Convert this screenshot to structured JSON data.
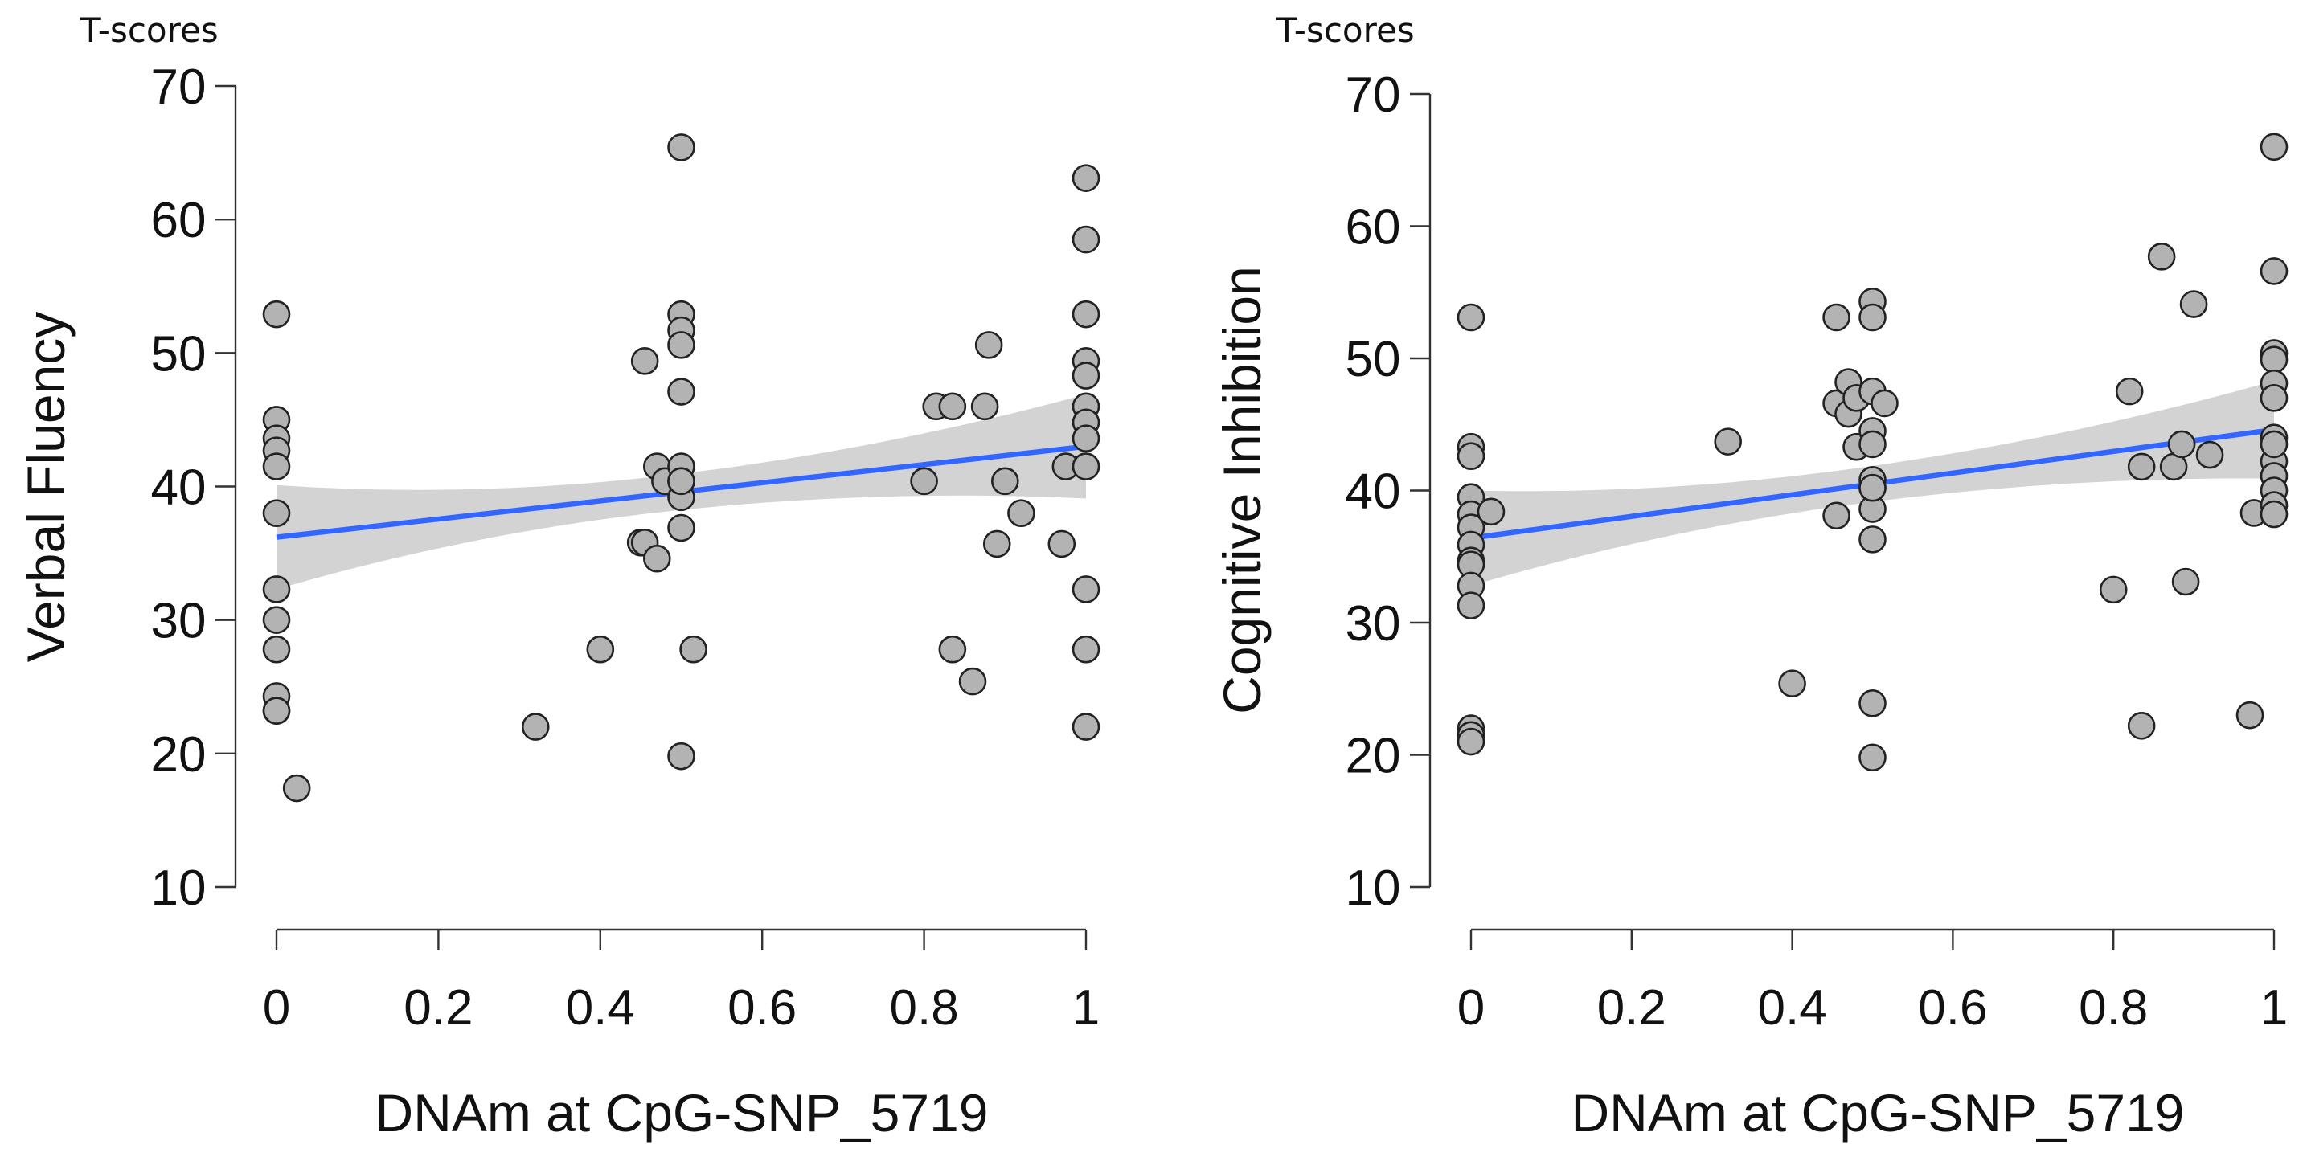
{
  "chart_data": [
    {
      "type": "scatter",
      "unit_label": "T-scores",
      "xlabel": "DNAm at CpG-SNP_5719",
      "ylabel": "Verbal Fluency",
      "xlim": [
        0,
        1
      ],
      "ylim": [
        10,
        70
      ],
      "xticks": [
        "0",
        "0.2",
        "0.4",
        "0.6",
        "0.8",
        "1"
      ],
      "yticks": [
        "10",
        "20",
        "30",
        "40",
        "50",
        "60",
        "70"
      ],
      "grid": false,
      "point_color": "#b3b3b3",
      "point_edge_color": "#222222",
      "fit_line_color": "#3366ff",
      "ci_band_color": "#d3d3d3",
      "fit": {
        "x": [
          0,
          1
        ],
        "y": [
          36.2,
          43.0
        ],
        "ci_low": [
          32.3,
          39.1
        ],
        "ci_high": [
          40.1,
          46.9
        ]
      },
      "x": [
        0,
        0,
        0,
        0,
        0,
        0,
        0,
        0,
        0,
        0,
        0,
        0,
        0.025,
        0.32,
        0.4,
        0.45,
        0.455,
        0.455,
        0.47,
        0.47,
        0.48,
        0.5,
        0.5,
        0.5,
        0.5,
        0.5,
        0.5,
        0.5,
        0.5,
        0.5,
        0.5,
        0.5,
        0.515,
        0.8,
        0.815,
        0.835,
        0.835,
        0.86,
        0.875,
        0.88,
        0.89,
        0.9,
        0.92,
        0.97,
        0.975,
        1,
        1,
        1,
        1,
        1,
        1,
        1,
        1,
        1,
        1,
        1,
        1,
        1
      ],
      "y": [
        52.9,
        45.0,
        43.6,
        42.7,
        41.5,
        38.0,
        32.3,
        30.0,
        27.8,
        24.3,
        23.2,
        23.2,
        17.4,
        22.0,
        27.8,
        35.8,
        49.4,
        35.8,
        34.6,
        41.5,
        40.4,
        65.4,
        52.9,
        51.7,
        50.6,
        47.1,
        41.5,
        40.4,
        39.2,
        36.9,
        19.8,
        40.4,
        27.8,
        40.4,
        46.0,
        46.0,
        27.8,
        25.4,
        46.0,
        50.6,
        35.7,
        40.4,
        38.0,
        35.7,
        41.5,
        63.1,
        58.5,
        52.9,
        49.4,
        48.3,
        46.0,
        44.8,
        43.6,
        41.5,
        32.3,
        27.8,
        22.0,
        41.5
      ]
    },
    {
      "type": "scatter",
      "unit_label": "T-scores",
      "xlabel": "DNAm at CpG-SNP_5719",
      "ylabel": "Cognitive Inhibition",
      "xlim": [
        0,
        1
      ],
      "ylim": [
        10,
        70
      ],
      "xticks": [
        "0",
        "0.2",
        "0.4",
        "0.6",
        "0.8",
        "1"
      ],
      "yticks": [
        "10",
        "20",
        "30",
        "40",
        "50",
        "60",
        "70"
      ],
      "grid": false,
      "point_color": "#b3b3b3",
      "point_edge_color": "#222222",
      "fit_line_color": "#3366ff",
      "ci_band_color": "#d3d3d3",
      "fit": {
        "x": [
          0,
          1
        ],
        "y": [
          36.4,
          44.6
        ],
        "ci_low": [
          32.8,
          40.9
        ],
        "ci_high": [
          40.0,
          48.3
        ]
      },
      "x": [
        0,
        0,
        0,
        0,
        0,
        0,
        0,
        0,
        0,
        0,
        0,
        0,
        0,
        0,
        0.025,
        0.32,
        0.4,
        0.455,
        0.455,
        0.455,
        0.47,
        0.47,
        0.48,
        0.48,
        0.5,
        0.5,
        0.5,
        0.5,
        0.5,
        0.5,
        0.5,
        0.5,
        0.5,
        0.5,
        0.5,
        0.5,
        0.515,
        0.8,
        0.82,
        0.835,
        0.835,
        0.86,
        0.875,
        0.885,
        0.89,
        0.9,
        0.92,
        0.97,
        0.975,
        1,
        1,
        1,
        1,
        1,
        1,
        1,
        1,
        1,
        1,
        1,
        1,
        1
      ],
      "y": [
        53.1,
        43.3,
        42.6,
        39.5,
        38.2,
        37.2,
        35.9,
        34.7,
        34.4,
        32.8,
        31.3,
        22.0,
        21.5,
        21.0,
        38.4,
        43.7,
        25.4,
        46.6,
        53.1,
        38.1,
        45.8,
        48.2,
        43.3,
        47.0,
        54.3,
        53.1,
        47.5,
        44.5,
        43.5,
        40.8,
        40.2,
        38.6,
        36.3,
        23.9,
        19.8,
        40.2,
        46.6,
        32.5,
        47.5,
        41.8,
        22.2,
        57.7,
        41.8,
        43.5,
        33.1,
        54.1,
        42.7,
        23.0,
        38.3,
        66.0,
        56.6,
        50.4,
        49.9,
        48.1,
        47.0,
        44.0,
        42.2,
        41.1,
        40.0,
        38.9,
        38.2,
        43.5
      ]
    }
  ]
}
